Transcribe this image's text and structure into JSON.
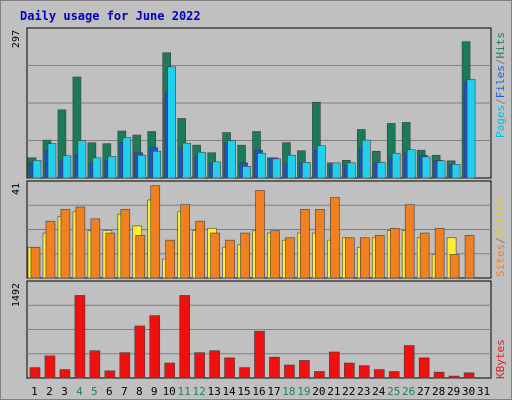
{
  "chart_data": {
    "type": "bar",
    "title": "Daily usage for June 2022",
    "categories": [
      "1",
      "2",
      "3",
      "4",
      "5",
      "6",
      "7",
      "8",
      "9",
      "10",
      "11",
      "12",
      "13",
      "14",
      "15",
      "16",
      "17",
      "18",
      "19",
      "20",
      "21",
      "22",
      "23",
      "24",
      "25",
      "26",
      "27",
      "28",
      "29",
      "30",
      "31"
    ],
    "weekend_days": [
      "4",
      "5",
      "11",
      "12",
      "18",
      "19",
      "25",
      "26"
    ],
    "panels": [
      {
        "id": "top",
        "ylim": [
          0,
          297
        ],
        "tick_label": "297",
        "legend": [
          {
            "label": "Pages",
            "color": "#00c0e0"
          },
          {
            "label": "/",
            "color": "#808080"
          },
          {
            "label": "Files",
            "color": "#2060d0"
          },
          {
            "label": "/",
            "color": "#808080"
          },
          {
            "label": "Hits",
            "color": "#208060"
          }
        ],
        "series": [
          {
            "name": "Hits",
            "color": "#1a7a5a",
            "values": [
              40,
              75,
              135,
              200,
              70,
              68,
              93,
              85,
              92,
              248,
              118,
              65,
              50,
              90,
              65,
              92,
              40,
              70,
              54,
              150,
              30,
              35,
              96,
              53,
              108,
              110,
              55,
              45,
              34,
              270,
              null
            ]
          },
          {
            "name": "Files",
            "color": "#2050d0",
            "values": [
              30,
              55,
              35,
              45,
              30,
              35,
              70,
              50,
              60,
              170,
              60,
              40,
              30,
              70,
              30,
              55,
              40,
              30,
              30,
              55,
              25,
              25,
              60,
              30,
              40,
              50,
              45,
              35,
              25,
              190,
              null
            ]
          },
          {
            "name": "Pages",
            "color": "#20d0ef",
            "values": [
              35,
              68,
              44,
              74,
              40,
              43,
              80,
              45,
              53,
              220,
              69,
              51,
              32,
              74,
              23,
              49,
              38,
              45,
              31,
              64,
              30,
              30,
              75,
              31,
              49,
              56,
              42,
              34,
              27,
              195,
              null
            ]
          }
        ]
      },
      {
        "id": "middle",
        "ylim": [
          0,
          41
        ],
        "tick_label": "41",
        "legend": [
          {
            "label": "Sites",
            "color": "#f08020"
          },
          {
            "label": "/",
            "color": "#808080"
          },
          {
            "label": "Visits",
            "color": "#e8d020"
          }
        ],
        "series": [
          {
            "name": "Visits",
            "color": "#ffee30",
            "values": [
              13,
              19,
              26,
              28,
              20,
              20,
              27,
              22,
              33,
              8,
              28,
              20,
              21,
              13,
              14,
              20,
              19,
              16,
              19,
              19,
              16,
              17,
              13,
              17,
              20,
              20,
              17,
              10,
              17,
              null,
              null
            ]
          },
          {
            "name": "Sites",
            "color": "#f08020",
            "values": [
              13,
              24,
              29,
              30,
              25,
              19,
              29,
              18,
              39,
              16,
              31,
              24,
              19,
              16,
              19,
              37,
              20,
              17,
              29,
              29,
              34,
              17,
              17,
              18,
              21,
              31,
              19,
              21,
              10,
              18,
              null
            ]
          }
        ]
      },
      {
        "id": "bottom",
        "ylim": [
          0,
          1492
        ],
        "tick_label": "1492",
        "legend": [
          {
            "label": "KBytes",
            "color": "#e02020"
          }
        ],
        "series": [
          {
            "name": "KBytes",
            "color": "#f01010",
            "values": [
              160,
              340,
              130,
              1270,
              420,
              110,
              390,
              800,
              960,
              230,
              1270,
              390,
              420,
              310,
              160,
              720,
              320,
              200,
              270,
              100,
              400,
              230,
              190,
              130,
              100,
              500,
              310,
              90,
              30,
              80,
              null
            ]
          }
        ]
      }
    ]
  }
}
